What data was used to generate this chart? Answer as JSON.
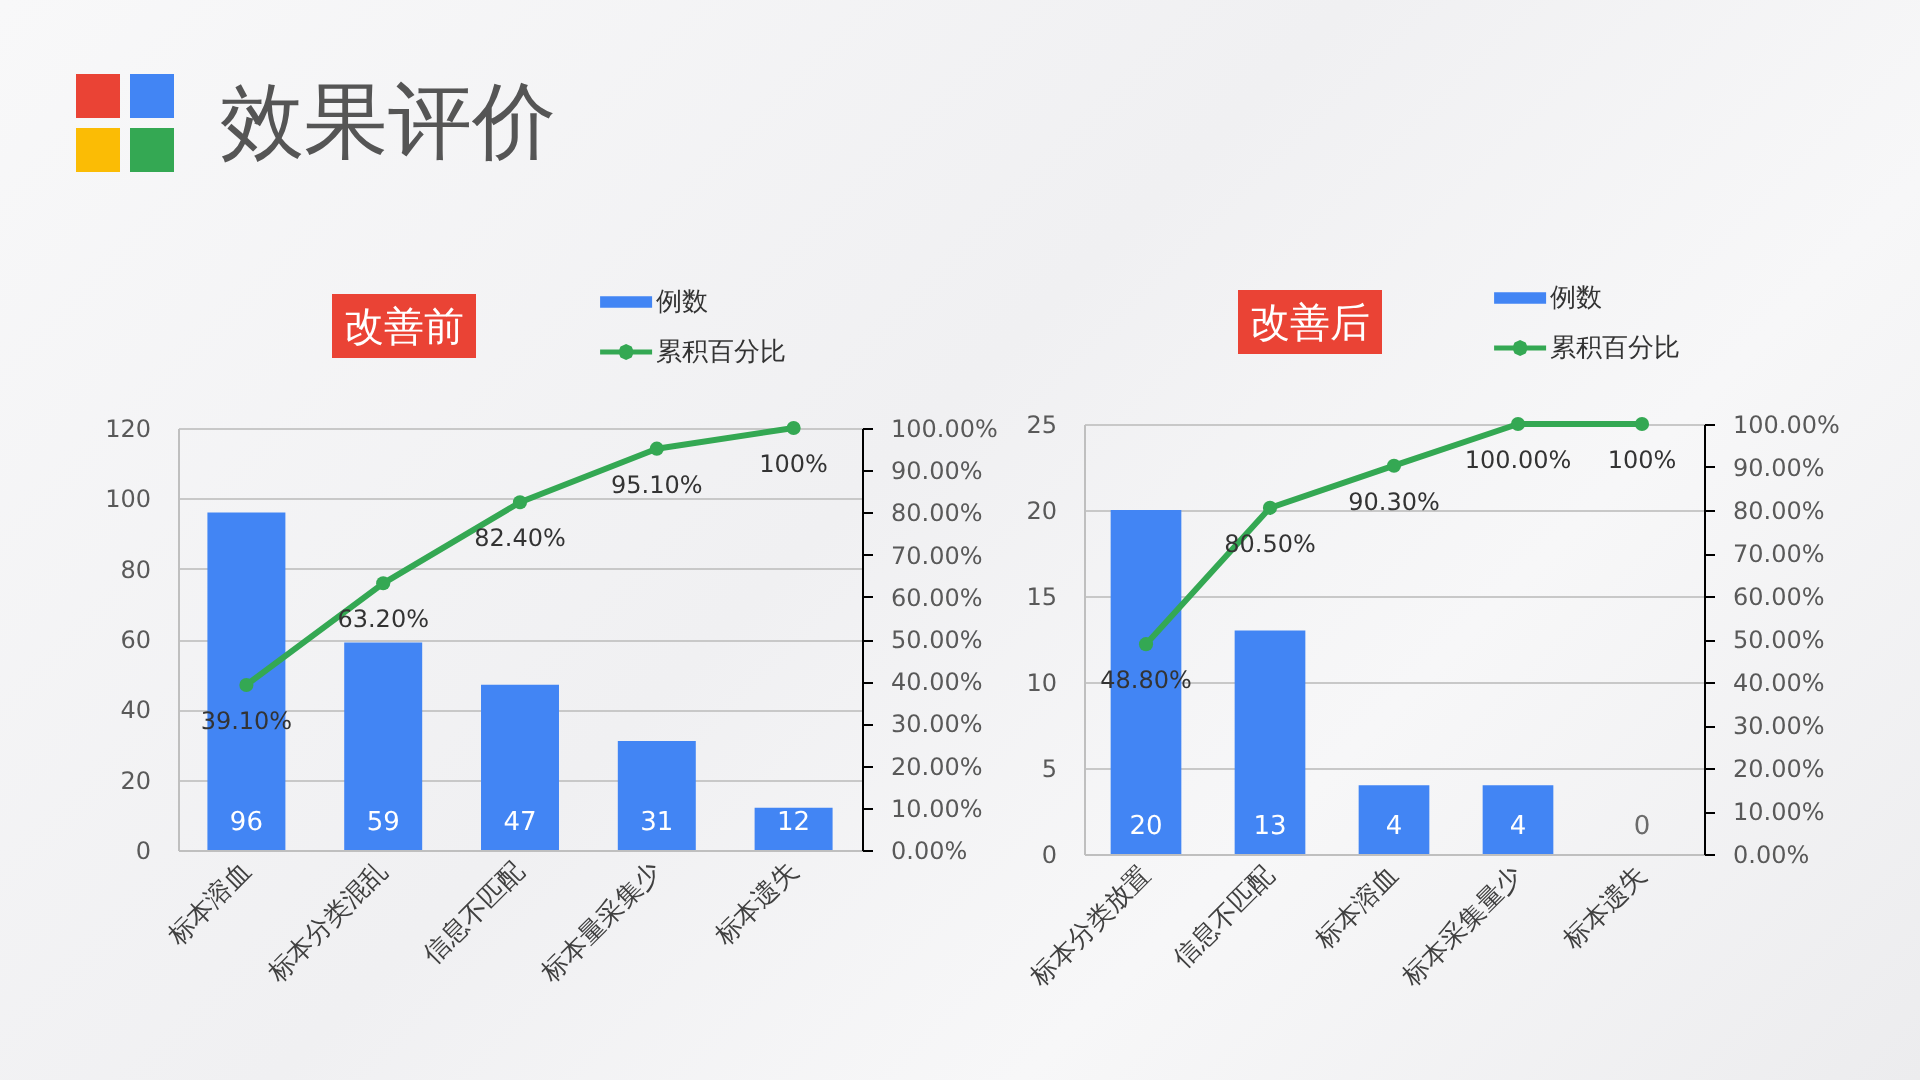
{
  "chart_data": [
    {
      "type": "other",
      "title": "效果评价"
    },
    {
      "type": "bar",
      "title": "改善前",
      "categories": [
        "标本溶血",
        "标本分类混乱",
        "信息不匹配",
        "标本量采集少",
        "标本遗失"
      ],
      "series": [
        {
          "name": "例数",
          "type": "bar",
          "color": "#4285f4",
          "values": [
            96,
            59,
            47,
            31,
            12
          ],
          "value_labels": [
            "96",
            "59",
            "47",
            "31",
            "12"
          ]
        },
        {
          "name": "累积百分比",
          "type": "line",
          "axis": "y2",
          "color": "#34a853",
          "values": [
            39.1,
            63.2,
            82.4,
            95.1,
            100
          ],
          "value_labels": [
            "39.10%",
            "63.20%",
            "82.40%",
            "95.10%",
            "100%"
          ]
        }
      ],
      "ylim": [
        0,
        120
      ],
      "yticks": [
        0,
        20,
        40,
        60,
        80,
        100,
        120
      ],
      "y2lim": [
        0,
        100
      ],
      "y2ticks": [
        {
          "value": 0,
          "label": "0.00%"
        },
        {
          "value": 10,
          "label": "10.00%"
        },
        {
          "value": 20,
          "label": "20.00%"
        },
        {
          "value": 30,
          "label": "30.00%"
        },
        {
          "value": 40,
          "label": "40.00%"
        },
        {
          "value": 50,
          "label": "50.00%"
        },
        {
          "value": 60,
          "label": "60.00%"
        },
        {
          "value": 70,
          "label": "70.00%"
        },
        {
          "value": 80,
          "label": "80.00%"
        },
        {
          "value": 90,
          "label": "90.00%"
        },
        {
          "value": 100,
          "label": "100.00%"
        }
      ],
      "grid": "y",
      "legend": "top right",
      "marker": "circle"
    },
    {
      "type": "bar",
      "title": "改善后",
      "categories": [
        "标本分类放置",
        "信息不匹配",
        "标本溶血",
        "标本采集量少",
        "标本遗失"
      ],
      "series": [
        {
          "name": "例数",
          "type": "bar",
          "color": "#4285f4",
          "values": [
            20,
            13,
            4,
            4,
            0
          ],
          "value_labels": [
            "20",
            "13",
            "4",
            "4",
            "0"
          ]
        },
        {
          "name": "累积百分比",
          "type": "line",
          "axis": "y2",
          "color": "#34a853",
          "values": [
            48.8,
            80.5,
            90.3,
            100,
            100
          ],
          "value_labels": [
            "48.80%",
            "80.50%",
            "90.30%",
            "100.00%",
            "100%"
          ]
        }
      ],
      "ylim": [
        0,
        25
      ],
      "yticks": [
        0,
        5,
        10,
        15,
        20,
        25
      ],
      "y2lim": [
        0,
        100
      ],
      "y2ticks": [
        {
          "value": 0,
          "label": "0.00%"
        },
        {
          "value": 10,
          "label": "10.00%"
        },
        {
          "value": 20,
          "label": "20.00%"
        },
        {
          "value": 30,
          "label": "30.00%"
        },
        {
          "value": 40,
          "label": "40.00%"
        },
        {
          "value": 50,
          "label": "50.00%"
        },
        {
          "value": 60,
          "label": "60.00%"
        },
        {
          "value": 70,
          "label": "70.00%"
        },
        {
          "value": 80,
          "label": "80.00%"
        },
        {
          "value": 90,
          "label": "90.00%"
        },
        {
          "value": 100,
          "label": "100.00%"
        }
      ],
      "grid": "y",
      "legend": "top right",
      "marker": "circle"
    }
  ]
}
